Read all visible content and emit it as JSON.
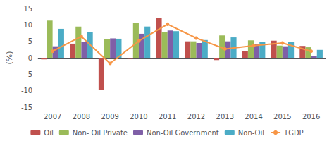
{
  "chart_data": {
    "type": "bar",
    "categories": [
      "2007",
      "2008",
      "2009",
      "2010",
      "2011",
      "2012",
      "2013",
      "2014",
      "2015",
      "2016"
    ],
    "series": [
      {
        "name": "Oil",
        "type": "bar",
        "color": "#c0504d",
        "values": [
          -0.5,
          4.3,
          -9.8,
          -0.1,
          12.0,
          5.0,
          -0.7,
          2.0,
          5.2,
          3.6
        ]
      },
      {
        "name": "Non- Oil Private",
        "type": "bar",
        "color": "#9bbb59",
        "values": [
          11.3,
          9.5,
          5.7,
          10.5,
          7.9,
          5.0,
          6.8,
          5.3,
          3.7,
          3.2
        ]
      },
      {
        "name": "Non-Oil Government",
        "type": "bar",
        "color": "#7f5fa7",
        "values": [
          3.5,
          4.8,
          5.9,
          7.3,
          8.3,
          4.5,
          5.0,
          4.2,
          3.5,
          0.5
        ]
      },
      {
        "name": "Non-Oil",
        "type": "bar",
        "color": "#4bacc6",
        "values": [
          8.8,
          7.8,
          5.8,
          9.5,
          8.1,
          5.4,
          6.2,
          4.9,
          4.8,
          2.4
        ]
      },
      {
        "name": "TGDP",
        "type": "line",
        "color": "#f79646",
        "marker": "circle",
        "values": [
          2.0,
          6.5,
          -1.7,
          5.1,
          10.2,
          6.0,
          2.7,
          3.7,
          4.5,
          2.0
        ]
      }
    ],
    "ylabel": "(%)",
    "ylim": [
      -15,
      15
    ],
    "yticks": [
      -15,
      -10,
      -5,
      0,
      5,
      10,
      15
    ],
    "grid": false,
    "legend": "bottom"
  }
}
